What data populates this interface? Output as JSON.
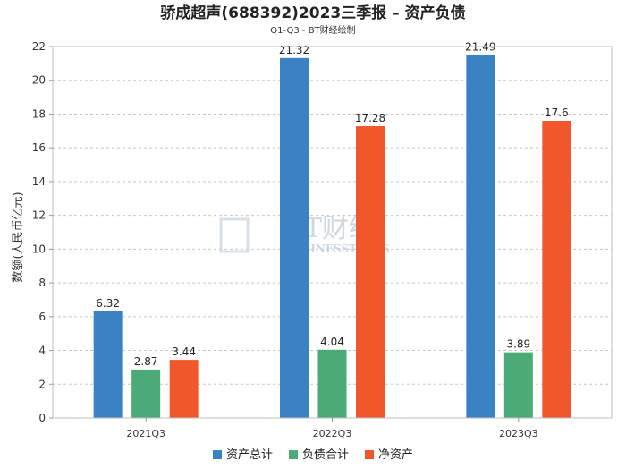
{
  "chart_data": {
    "type": "bar",
    "title": "骄成超声(688392)2023三季报 – 资产负债",
    "subtitle": "Q1-Q3 - BT财经绘制",
    "ylabel": "数额(人民币亿元)",
    "xlabel": "",
    "categories": [
      "2021Q3",
      "2022Q3",
      "2023Q3"
    ],
    "ylim": [
      0,
      22
    ],
    "yticks": [
      0,
      2,
      4,
      6,
      8,
      10,
      12,
      14,
      16,
      18,
      20,
      22
    ],
    "grid": true,
    "legend_position": "bottom-center",
    "series": [
      {
        "name": "资产总计",
        "color": "#3a82c4",
        "values": [
          6.32,
          21.32,
          21.49
        ],
        "labels": [
          "6.32",
          "21.32",
          "21.49"
        ]
      },
      {
        "name": "负债合计",
        "color": "#4aab78",
        "values": [
          2.87,
          4.04,
          3.89
        ],
        "labels": [
          "2.87",
          "4.04",
          "3.89"
        ]
      },
      {
        "name": "净资产",
        "color": "#f0582c",
        "values": [
          3.44,
          17.28,
          17.6
        ],
        "labels": [
          "3.44",
          "17.28",
          "17.6"
        ]
      }
    ],
    "watermark": {
      "line1": "BT财经",
      "line2": "BUSINESSTIMES"
    }
  }
}
